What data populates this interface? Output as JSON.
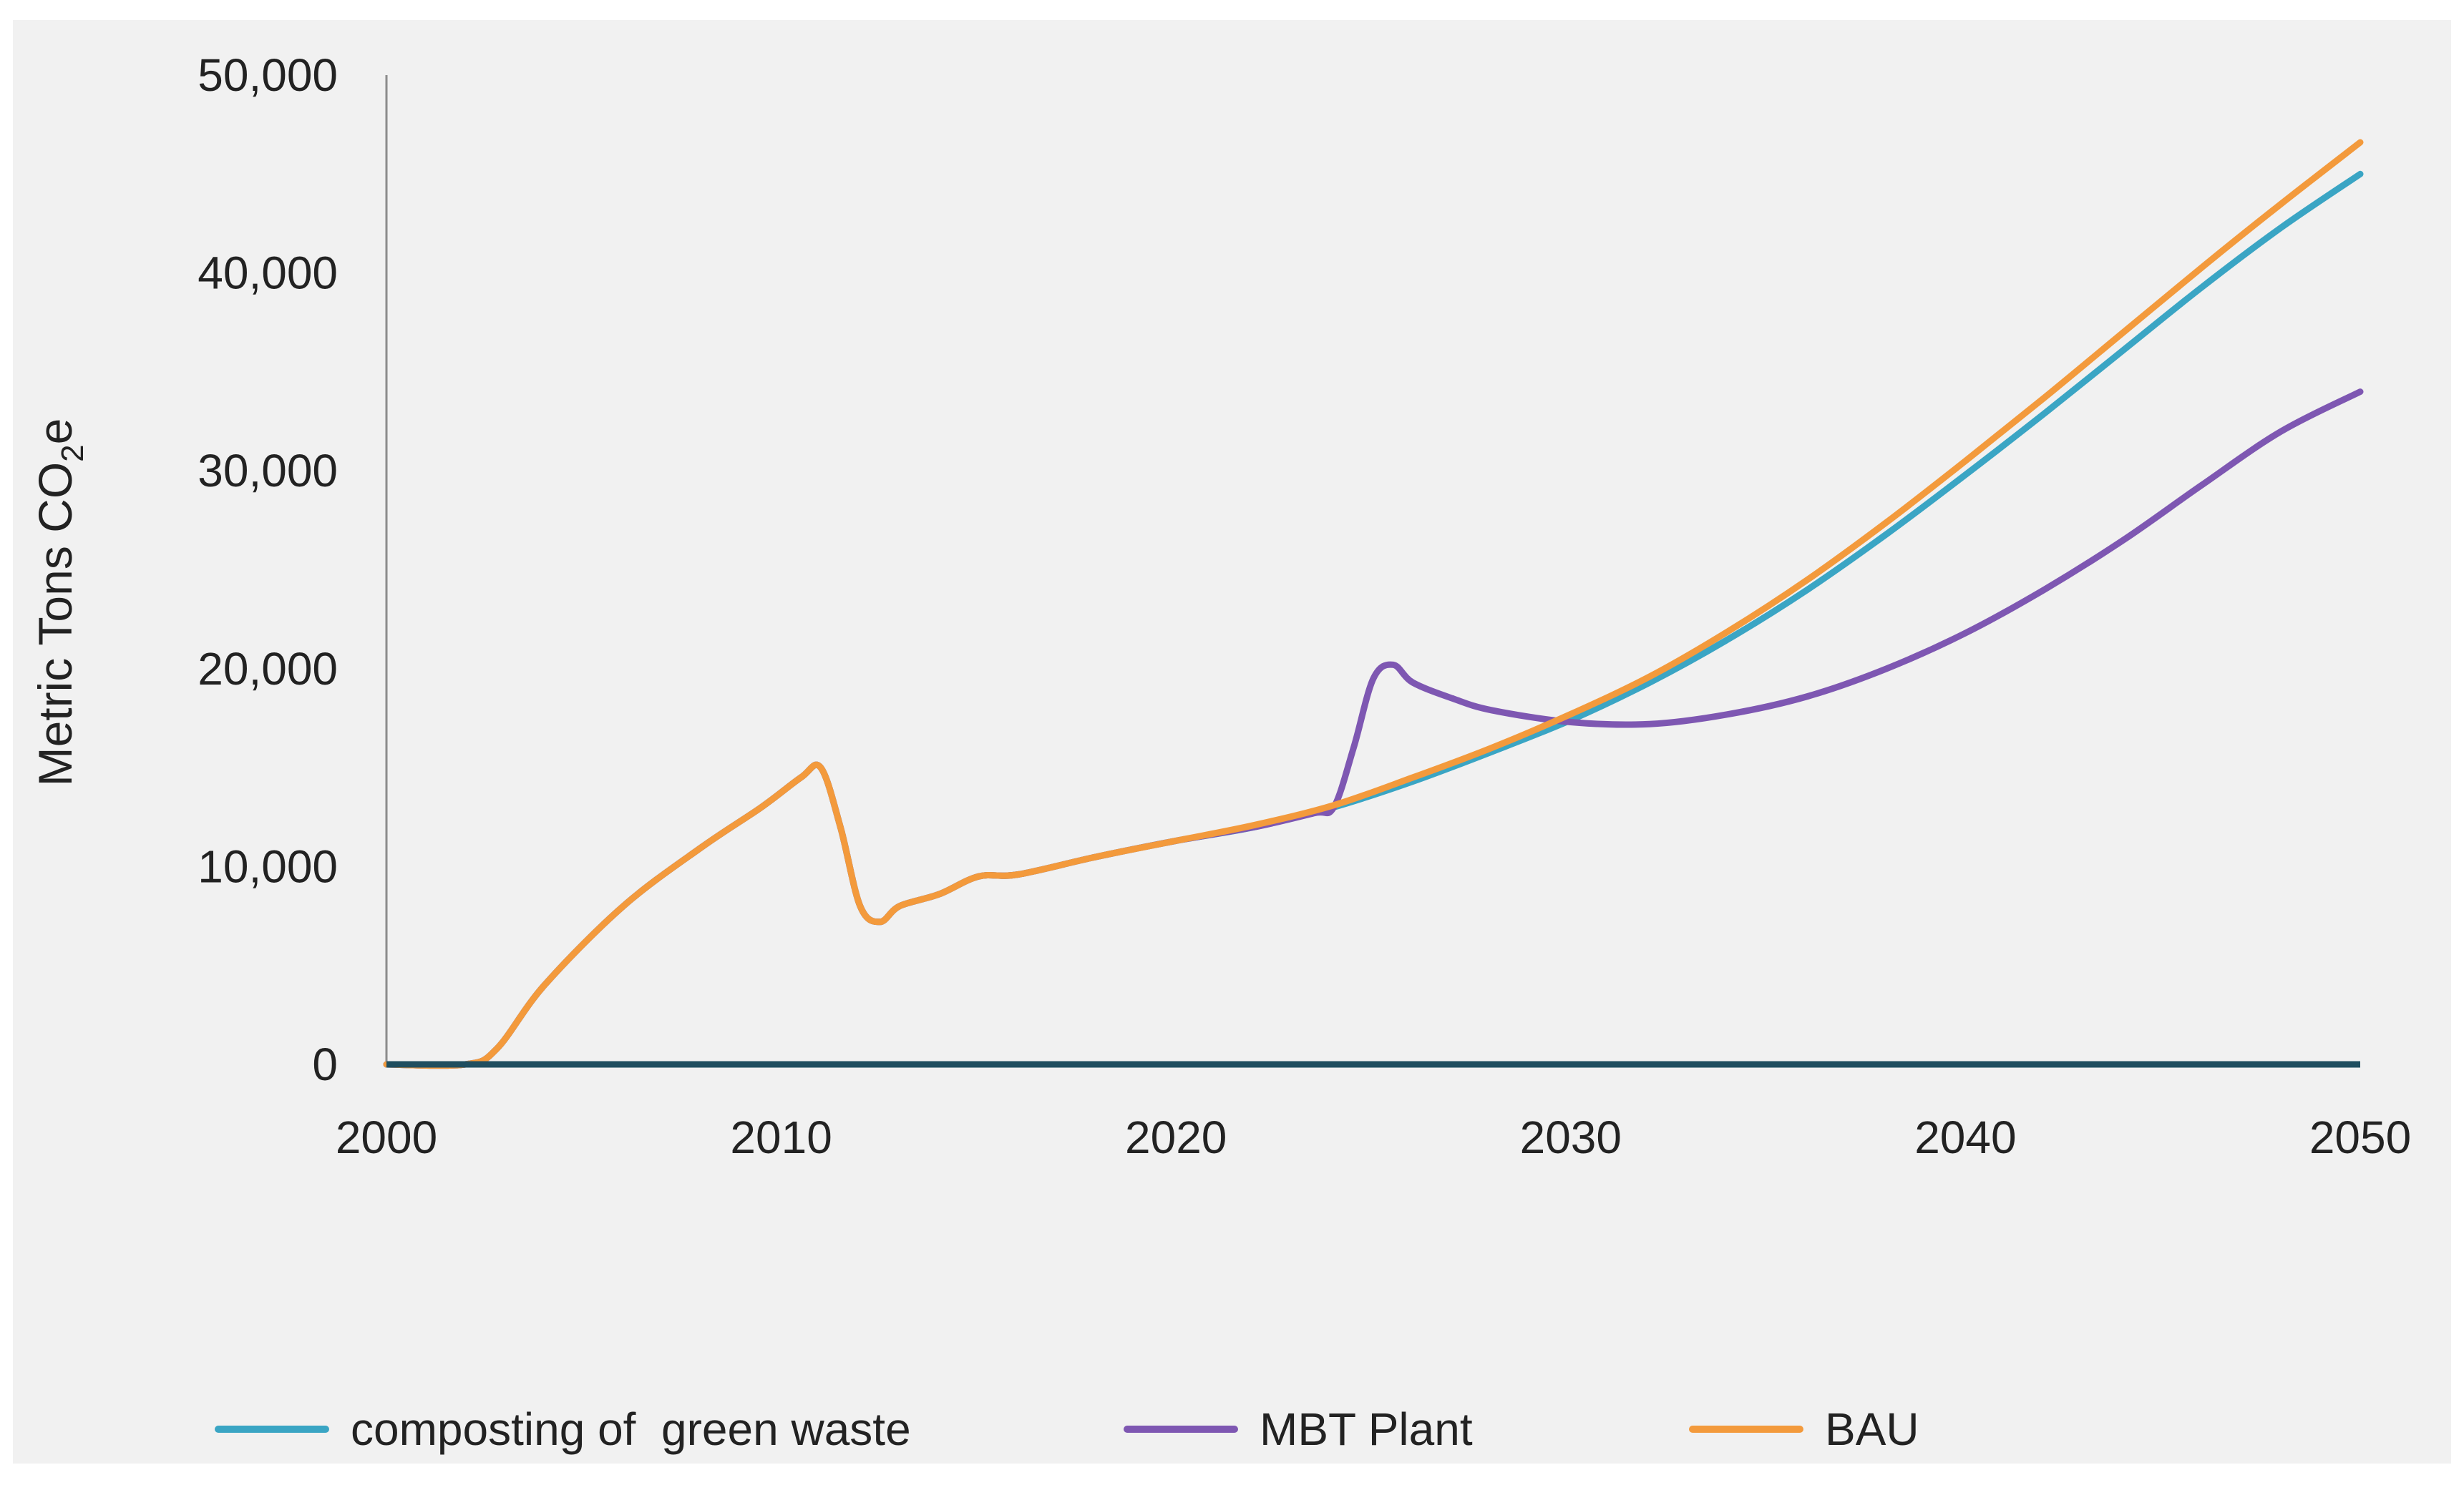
{
  "chart_data": {
    "type": "line",
    "title": "",
    "xlabel": "",
    "ylabel": "Metric Tons CO2e",
    "ylabel_main": "Metric Tons CO",
    "ylabel_sub": "2",
    "ylabel_end": "e",
    "xlim": [
      2000,
      2050
    ],
    "ylim": [
      0,
      50000
    ],
    "xticks": [
      2000,
      2010,
      2020,
      2030,
      2040,
      2050
    ],
    "xtick_labels": [
      "2000",
      "2010",
      "2020",
      "2030",
      "2040",
      "2050"
    ],
    "yticks": [
      0,
      10000,
      20000,
      30000,
      40000,
      50000
    ],
    "ytick_labels": [
      "0",
      "10,000",
      "20,000",
      "30,000",
      "40,000",
      "50,000"
    ],
    "grid": false,
    "legend_position": "bottom",
    "series": [
      {
        "name": "composting of  green waste",
        "color": "#3AA5C4",
        "x": [
          2000,
          2002,
          2002.8,
          2004,
          2006,
          2008,
          2009.5,
          2010.5,
          2011,
          2011.5,
          2012,
          2012.5,
          2013,
          2014,
          2015,
          2016,
          2018,
          2020,
          2022,
          2024,
          2026,
          2028,
          2030,
          2032,
          2034,
          2036,
          2038,
          2040,
          2042,
          2044,
          2046,
          2048,
          2050
        ],
        "y": [
          0,
          0,
          800,
          4000,
          8000,
          11000,
          13000,
          14500,
          15000,
          12000,
          8000,
          7200,
          8000,
          8600,
          9500,
          9600,
          10500,
          11300,
          12000,
          13000,
          14300,
          15800,
          17400,
          19300,
          21500,
          24000,
          26800,
          29800,
          32900,
          36100,
          39300,
          42300,
          45000
        ]
      },
      {
        "name": "MBT Plant",
        "color": "#7E57B2",
        "x": [
          2000,
          2002,
          2002.8,
          2004,
          2006,
          2008,
          2009.5,
          2010.5,
          2011,
          2011.5,
          2012,
          2012.5,
          2013,
          2014,
          2015,
          2016,
          2018,
          2020,
          2022,
          2023.5,
          2024,
          2024.5,
          2025,
          2025.5,
          2026,
          2027,
          2028,
          2030,
          2032,
          2034,
          2036,
          2038,
          2040,
          2042,
          2044,
          2046,
          2048,
          2050
        ],
        "y": [
          0,
          0,
          800,
          4000,
          8000,
          11000,
          13000,
          14500,
          15000,
          12000,
          8000,
          7200,
          8000,
          8600,
          9500,
          9600,
          10500,
          11300,
          12000,
          12700,
          13000,
          16000,
          19500,
          20200,
          19300,
          18500,
          17900,
          17300,
          17200,
          17700,
          18600,
          20000,
          21800,
          24000,
          26500,
          29300,
          32000,
          34000
        ]
      },
      {
        "name": "BAU",
        "color": "#F39A3C",
        "x": [
          2000,
          2002,
          2002.8,
          2004,
          2006,
          2008,
          2009.5,
          2010.5,
          2011,
          2011.5,
          2012,
          2012.5,
          2013,
          2014,
          2015,
          2016,
          2018,
          2020,
          2022,
          2024,
          2026,
          2028,
          2030,
          2032,
          2034,
          2036,
          2038,
          2040,
          2042,
          2044,
          2046,
          2048,
          2050
        ],
        "y": [
          0,
          0,
          800,
          4000,
          8000,
          11000,
          13000,
          14500,
          15000,
          12000,
          8000,
          7200,
          8000,
          8600,
          9500,
          9600,
          10500,
          11300,
          12100,
          13100,
          14500,
          16000,
          17700,
          19600,
          21900,
          24500,
          27400,
          30500,
          33700,
          37000,
          40300,
          43500,
          46600
        ]
      }
    ]
  }
}
